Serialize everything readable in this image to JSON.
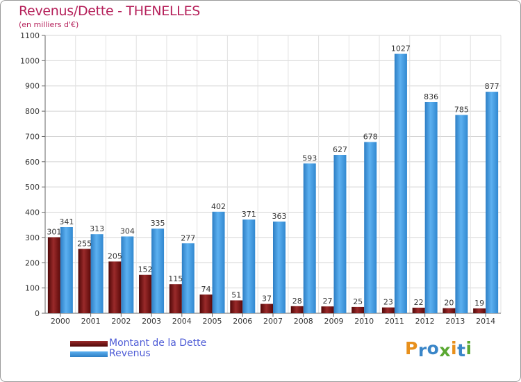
{
  "chart_data": {
    "type": "bar",
    "title": "Revenus/Dette - THENELLES",
    "subtitle": "(en milliers d'€)",
    "xlabel": "",
    "ylabel": "",
    "ylim": [
      0,
      1100
    ],
    "yticks": [
      0,
      100,
      200,
      300,
      400,
      500,
      600,
      700,
      800,
      900,
      1000,
      1100
    ],
    "grid": true,
    "categories": [
      "2000",
      "2001",
      "2002",
      "2003",
      "2004",
      "2005",
      "2006",
      "2007",
      "2008",
      "2009",
      "2010",
      "2011",
      "2012",
      "2013",
      "2014"
    ],
    "series": [
      {
        "name": "Montant de la Dette",
        "color": "#7a1414",
        "values": [
          301,
          255,
          205,
          152,
          115,
          74,
          51,
          37,
          28,
          27,
          25,
          23,
          22,
          20,
          19
        ]
      },
      {
        "name": "Revenus",
        "color": "#3a93dc",
        "values": [
          341,
          313,
          304,
          335,
          277,
          402,
          371,
          363,
          593,
          627,
          678,
          1027,
          836,
          785,
          877
        ]
      }
    ],
    "legend": "bottom-left"
  },
  "logo": {
    "letters": [
      "P",
      "r",
      "o",
      "x",
      "i",
      "t",
      "i"
    ],
    "colors": [
      "#e8901c",
      "#3a86c8",
      "#3a86c8",
      "#5aa832",
      "#e8901c",
      "#3a86c8",
      "#5aa832"
    ]
  }
}
